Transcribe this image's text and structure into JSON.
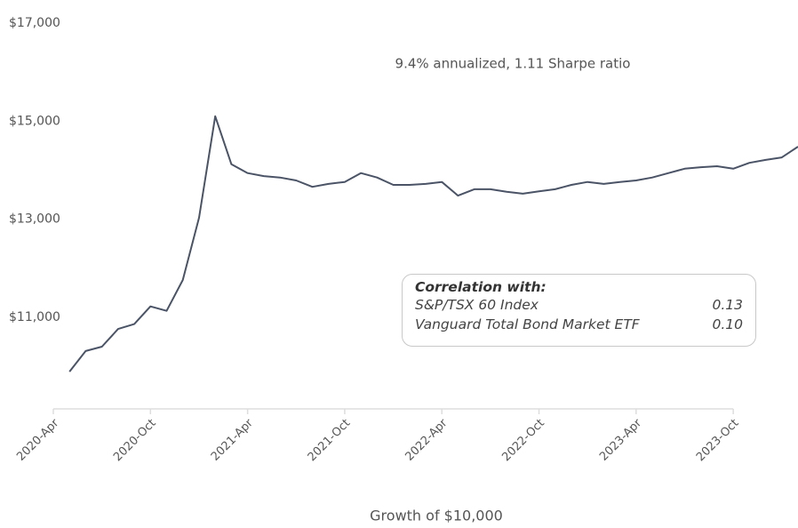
{
  "chart_data": {
    "type": "line",
    "annotation": "9.4% annualized, 1.11 Sharpe ratio",
    "xlabel": "Growth of $10,000",
    "x": [
      "2020-Apr",
      "2020-May",
      "2020-Jun",
      "2020-Jul",
      "2020-Aug",
      "2020-Sep",
      "2020-Oct",
      "2020-Nov",
      "2020-Dec",
      "2021-Jan",
      "2021-Feb",
      "2021-Mar",
      "2021-Apr",
      "2021-May",
      "2021-Jun",
      "2021-Jul",
      "2021-Aug",
      "2021-Sep",
      "2021-Oct",
      "2021-Nov",
      "2021-Dec",
      "2022-Jan",
      "2022-Feb",
      "2022-Mar",
      "2022-Apr",
      "2022-May",
      "2022-Jun",
      "2022-Jul",
      "2022-Aug",
      "2022-Sep",
      "2022-Oct",
      "2022-Nov",
      "2022-Dec",
      "2023-Jan",
      "2023-Feb",
      "2023-Mar",
      "2023-Apr",
      "2023-May",
      "2023-Jun",
      "2023-Jul",
      "2023-Aug",
      "2023-Sep",
      "2023-Oct",
      "2023-Nov",
      "2023-Dec",
      "2024-Jan",
      "2024-Feb"
    ],
    "series": [
      {
        "color": "#4a5466",
        "values": [
          null,
          9890,
          10310,
          10400,
          10760,
          10860,
          11220,
          11130,
          11760,
          13030,
          15100,
          14120,
          13940,
          13880,
          13850,
          13790,
          13660,
          13720,
          13760,
          13940,
          13850,
          13700,
          13700,
          13720,
          13760,
          13480,
          13610,
          13610,
          13560,
          13520,
          13570,
          13610,
          13700,
          13760,
          13720,
          13760,
          13790,
          13850,
          13940,
          14030,
          14060,
          14080,
          14030,
          14150,
          14210,
          14260,
          14480
        ]
      }
    ],
    "xticks": [
      "2020-Apr",
      "2020-Oct",
      "2021-Apr",
      "2021-Oct",
      "2022-Apr",
      "2022-Oct",
      "2023-Apr",
      "2023-Oct"
    ],
    "ylim": [
      9130,
      17000
    ],
    "yticks": [
      {
        "value": 11000,
        "label": "$11,000"
      },
      {
        "value": 13000,
        "label": "$13,000"
      },
      {
        "value": 15000,
        "label": "$15,000"
      },
      {
        "value": 17000,
        "label": "$17,000"
      }
    ],
    "correlation": {
      "title": "Correlation with:",
      "names": [
        "S&P/TSX 60 Index",
        "Vanguard Total Bond Market ETF"
      ],
      "values": [
        0.13,
        0.1
      ],
      "value_labels": [
        "0.13",
        "0.10"
      ]
    }
  }
}
